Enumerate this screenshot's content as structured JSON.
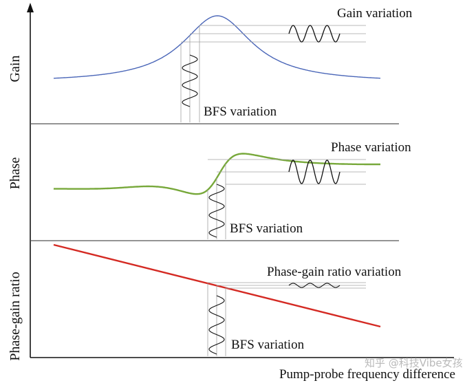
{
  "panels": {
    "gain": {
      "ylabel": "Gain",
      "output_label": "Gain variation",
      "input_label": "BFS variation",
      "curve_color": "#4a66b8"
    },
    "phase": {
      "ylabel": "Phase",
      "output_label": "Phase variation",
      "input_label": "BFS variation",
      "curve_color": "#77a83a"
    },
    "ratio": {
      "ylabel": "Phase-gain ratio",
      "output_label": "Phase-gain ratio variation",
      "input_label": "BFS variation",
      "curve_color": "#d42a23"
    }
  },
  "xlabel": "Pump-probe frequency difference",
  "watermark": "知乎 @科技Vibe女孩",
  "axis_color": "#111111",
  "guide_color": "#9a9a9a",
  "icons": [
    "y-axis-arrow"
  ]
}
